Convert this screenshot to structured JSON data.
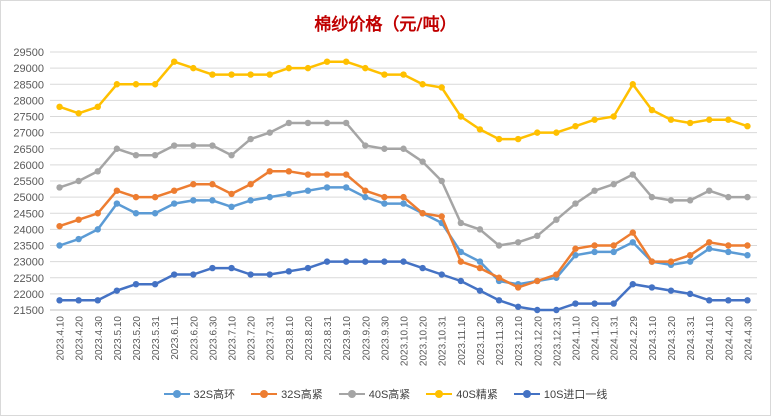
{
  "chart_data": {
    "type": "line",
    "title": "棉纱价格（元/吨）",
    "xlabel": "",
    "ylabel": "",
    "ylim": [
      21500,
      29500
    ],
    "ytick_step": 500,
    "grid": true,
    "legend_position": "bottom",
    "categories": [
      "2023.4.10",
      "2023.4.20",
      "2023.4.30",
      "2023.5.10",
      "2023.5.20",
      "2023.5.31",
      "2023.6.11",
      "2023.6.20",
      "2023.6.30",
      "2023.7.10",
      "2023.7.20",
      "2023.7.31",
      "2023.8.10",
      "2023.8.20",
      "2023.8.31",
      "2023.9.10",
      "2023.9.20",
      "2023.9.30",
      "2023.10.10",
      "2023.10.20",
      "2023.10.31",
      "2023.11.10",
      "2023.11.20",
      "2023.11.30",
      "2023.12.10",
      "2023.12.20",
      "2023.12.31",
      "2024.1.10",
      "2024.1.20",
      "2024.1.31",
      "2024.2.29",
      "2024.3.10",
      "2024.3.20",
      "2024.3.31",
      "2024.4.10",
      "2024.4.20",
      "2024.4.30"
    ],
    "series": [
      {
        "name": "32S高环",
        "color": "#5b9bd5",
        "values": [
          23500,
          23700,
          24000,
          24800,
          24500,
          24500,
          24800,
          24900,
          24900,
          24700,
          24900,
          25000,
          25100,
          25200,
          25300,
          25300,
          25000,
          24800,
          24800,
          24500,
          24200,
          23300,
          23000,
          22400,
          22300,
          22400,
          22500,
          23200,
          23300,
          23300,
          23600,
          23000,
          22900,
          23000,
          23400,
          23300,
          23200
        ]
      },
      {
        "name": "32S高紧",
        "color": "#ed7d31",
        "values": [
          24100,
          24300,
          24500,
          25200,
          25000,
          25000,
          25200,
          25400,
          25400,
          25100,
          25400,
          25800,
          25800,
          25700,
          25700,
          25700,
          25200,
          25000,
          25000,
          24500,
          24400,
          23000,
          22800,
          22500,
          22200,
          22400,
          22600,
          23400,
          23500,
          23500,
          23900,
          23000,
          23000,
          23200,
          23600,
          23500,
          23500
        ]
      },
      {
        "name": "40S高紧",
        "color": "#a5a5a5",
        "values": [
          25300,
          25500,
          25800,
          26500,
          26300,
          26300,
          26600,
          26600,
          26600,
          26300,
          26800,
          27000,
          27300,
          27300,
          27300,
          27300,
          26600,
          26500,
          26500,
          26100,
          25500,
          24200,
          24000,
          23500,
          23600,
          23800,
          24300,
          24800,
          25200,
          25400,
          25700,
          25000,
          24900,
          24900,
          25200,
          25000,
          25000
        ]
      },
      {
        "name": "40S精紧",
        "color": "#ffc000",
        "values": [
          27800,
          27600,
          27800,
          28500,
          28500,
          28500,
          29200,
          29000,
          28800,
          28800,
          28800,
          28800,
          29000,
          29000,
          29200,
          29200,
          29000,
          28800,
          28800,
          28500,
          28400,
          27500,
          27100,
          26800,
          26800,
          27000,
          27000,
          27200,
          27400,
          27500,
          28500,
          27700,
          27400,
          27300,
          27400,
          27400,
          27200
        ]
      },
      {
        "name": "10S进口一线",
        "color": "#4472c4",
        "values": [
          21800,
          21800,
          21800,
          22100,
          22300,
          22300,
          22600,
          22600,
          22800,
          22800,
          22600,
          22600,
          22700,
          22800,
          23000,
          23000,
          23000,
          23000,
          23000,
          22800,
          22600,
          22400,
          22100,
          21800,
          21600,
          21500,
          21500,
          21700,
          21700,
          21700,
          22300,
          22200,
          22100,
          22000,
          21800,
          21800,
          21800
        ]
      }
    ]
  }
}
